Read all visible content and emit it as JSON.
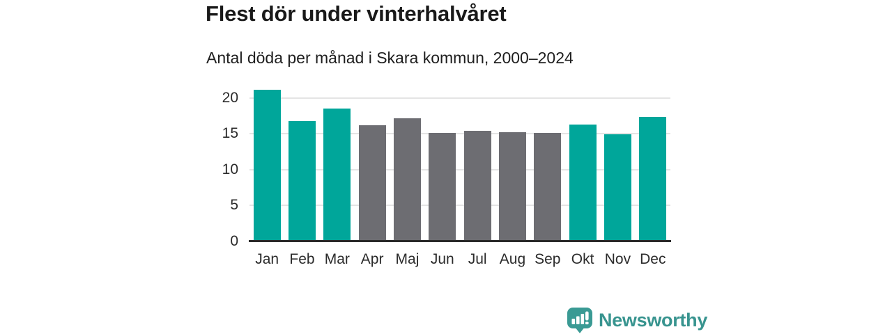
{
  "header": {
    "title": "Flest dör under vinterhalvåret",
    "subtitle": "Antal döda per månad i Skara kommun, 2000–2024"
  },
  "chart_data": {
    "type": "bar",
    "title": "Flest dör under vinterhalvåret",
    "subtitle": "Antal döda per månad i Skara kommun, 2000–2024",
    "categories": [
      "Jan",
      "Feb",
      "Mar",
      "Apr",
      "Maj",
      "Jun",
      "Jul",
      "Aug",
      "Sep",
      "Okt",
      "Nov",
      "Dec"
    ],
    "values": [
      21.1,
      16.8,
      18.5,
      16.2,
      17.1,
      15.1,
      15.4,
      15.2,
      15.1,
      16.3,
      14.9,
      17.3
    ],
    "bar_colors": [
      "#00a69a",
      "#00a69a",
      "#00a69a",
      "#6d6d72",
      "#6d6d72",
      "#6d6d72",
      "#6d6d72",
      "#6d6d72",
      "#6d6d72",
      "#00a69a",
      "#00a69a",
      "#00a69a"
    ],
    "highlight_color": "#00a69a",
    "muted_color": "#6d6d72",
    "winter_months": [
      "Jan",
      "Feb",
      "Mar",
      "Okt",
      "Nov",
      "Dec"
    ],
    "xlabel": "",
    "ylabel": "",
    "yticks": [
      0,
      5,
      10,
      15,
      20
    ],
    "ylim": [
      0,
      21.6
    ],
    "grid": true,
    "legend": false,
    "gridline_color": "#e4e4e4",
    "axis_color": "#292929"
  },
  "footer": {
    "brand": "Newsworthy",
    "brand_color": "#38948f"
  }
}
